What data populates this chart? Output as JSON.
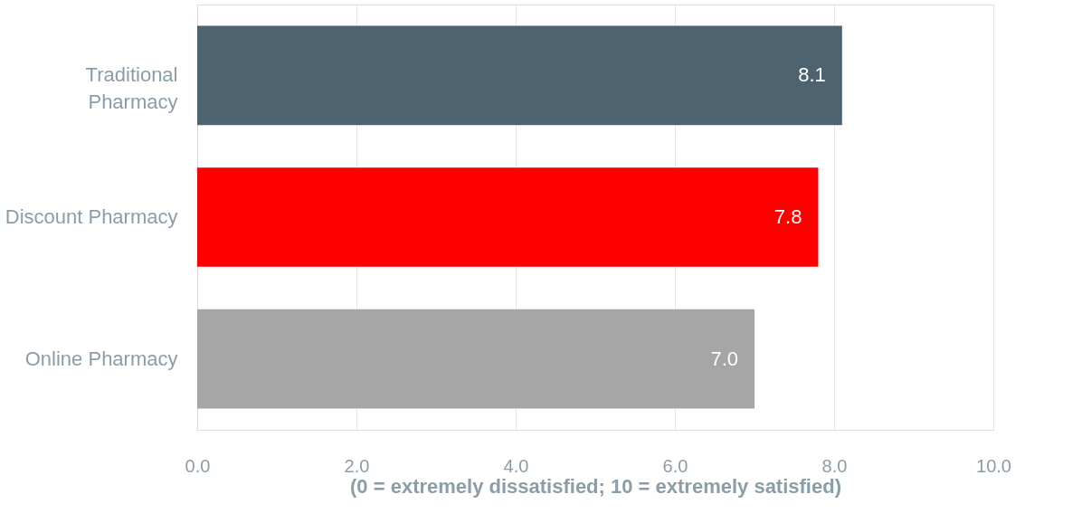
{
  "chart_data": {
    "type": "bar",
    "orientation": "horizontal",
    "categories": [
      "Traditional Pharmacy",
      "Discount Pharmacy",
      "Online Pharmacy"
    ],
    "values": [
      8.1,
      7.8,
      7.0
    ],
    "value_labels": [
      "8.1",
      "7.8",
      "7.0"
    ],
    "colors": [
      "#4d6470",
      "#ff0000",
      "#a6a6a6"
    ],
    "xlabel": "(0 = extremely dissatisfied; 10 = extremely satisfied)",
    "xlim": [
      0,
      10
    ],
    "xticks": [
      {
        "value": 0,
        "label": "0.0"
      },
      {
        "value": 2,
        "label": "2.0"
      },
      {
        "value": 4,
        "label": "4.0"
      },
      {
        "value": 6,
        "label": "6.0"
      },
      {
        "value": 8,
        "label": "8.0"
      },
      {
        "value": 10,
        "label": "10.0"
      }
    ],
    "grid": "x",
    "legend": false
  }
}
